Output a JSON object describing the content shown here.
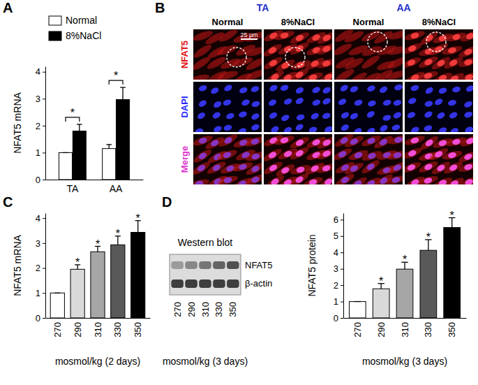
{
  "chart_data": [
    {
      "type": "bar",
      "title": "A",
      "y_label": "NFAT5 mRNA",
      "categories": [
        "TA",
        "AA"
      ],
      "series": [
        {
          "name": "Normal",
          "color": "#ffffff",
          "values": [
            1.0,
            1.15
          ],
          "errors": [
            0,
            0.15
          ]
        },
        {
          "name": "8%NaCl",
          "color": "#000000",
          "values": [
            1.8,
            2.97
          ],
          "errors": [
            0.25,
            0.45
          ]
        }
      ],
      "significance": [
        "*",
        "*"
      ],
      "ylim": [
        0,
        4.2
      ],
      "yticks": [
        0,
        1,
        2,
        3,
        4
      ],
      "legend": "upper left"
    },
    {
      "type": "bar",
      "title": "C",
      "x_label": "mosmol/kg (2 days)",
      "y_label": "NFAT5 mRNA",
      "categories": [
        "270",
        "290",
        "310",
        "330",
        "350"
      ],
      "values": [
        1.0,
        1.95,
        2.65,
        2.93,
        3.43
      ],
      "errors": [
        0,
        0.18,
        0.22,
        0.35,
        0.47
      ],
      "colors": [
        "#ffffff",
        "#d9d9d9",
        "#a6a6a6",
        "#595959",
        "#000000"
      ],
      "significance": [
        null,
        "*",
        "*",
        "*",
        "*"
      ],
      "ylim": [
        0,
        4.2
      ],
      "yticks": [
        0,
        1,
        2,
        3,
        4
      ]
    },
    {
      "type": "bar",
      "title": "D",
      "x_label": "mosmol/kg (3 days)",
      "y_label": "NFAT5 protein",
      "categories": [
        "270",
        "290",
        "310",
        "330",
        "350"
      ],
      "values": [
        1.0,
        1.78,
        2.98,
        4.13,
        5.52
      ],
      "errors": [
        0,
        0.32,
        0.42,
        0.65,
        0.6
      ],
      "colors": [
        "#ffffff",
        "#d9d9d9",
        "#a6a6a6",
        "#595959",
        "#000000"
      ],
      "significance": [
        null,
        "*",
        "*",
        "*",
        "*"
      ],
      "ylim": [
        0,
        6.4
      ],
      "yticks": [
        0,
        1,
        2,
        3,
        4,
        5,
        6
      ]
    }
  ],
  "figure": {
    "micrographs": {
      "panel_label": "B",
      "groups": [
        {
          "label": "TA",
          "conditions": [
            "Normal",
            "8%NaCl"
          ]
        },
        {
          "label": "AA",
          "conditions": [
            "Normal",
            "8%NaCl"
          ]
        }
      ],
      "rows": [
        "NFAT5",
        "DAPI",
        "Merge"
      ],
      "scale_bar": "25 μm"
    },
    "western_blot": {
      "title": "Western blot",
      "bands": [
        "NFAT5",
        "β-actin"
      ],
      "lanes": [
        "270",
        "290",
        "310",
        "330",
        "350"
      ],
      "x_label": "mosmol/kg (3 days)"
    }
  }
}
